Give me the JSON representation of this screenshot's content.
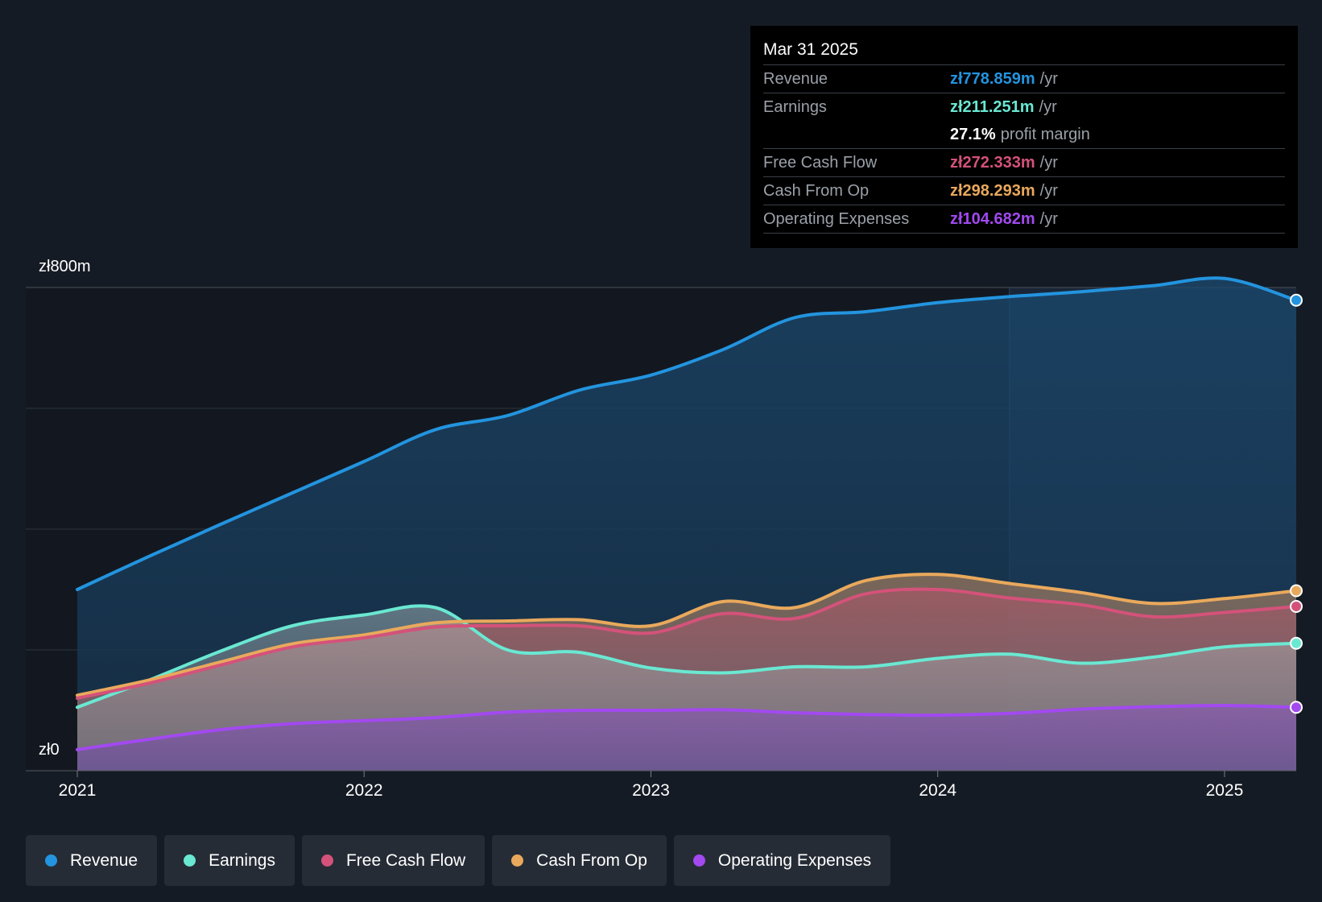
{
  "colors": {
    "revenue": "#2394df",
    "earnings": "#6ae8d2",
    "free_cash_flow": "#d4527a",
    "cash_from_op": "#e9a95c",
    "operating_expenses": "#a249f0",
    "background": "#151b24",
    "tooltip_bg": "#000000"
  },
  "tooltip": {
    "date": "Mar 31 2025",
    "rows": [
      {
        "label": "Revenue",
        "value": "zł778.859m",
        "unit": "/yr",
        "color": "#2394df"
      },
      {
        "label": "Earnings",
        "value": "zł211.251m",
        "unit": "/yr",
        "color": "#6ae8d2"
      },
      {
        "label": "",
        "value": "27.1%",
        "unit": "profit margin",
        "color": "#ffffff"
      },
      {
        "label": "Free Cash Flow",
        "value": "zł272.333m",
        "unit": "/yr",
        "color": "#d4527a"
      },
      {
        "label": "Cash From Op",
        "value": "zł298.293m",
        "unit": "/yr",
        "color": "#e9a95c"
      },
      {
        "label": "Operating Expenses",
        "value": "zł104.682m",
        "unit": "/yr",
        "color": "#a249f0"
      }
    ]
  },
  "legend": [
    {
      "label": "Revenue",
      "color": "#2394df"
    },
    {
      "label": "Earnings",
      "color": "#6ae8d2"
    },
    {
      "label": "Free Cash Flow",
      "color": "#d4527a"
    },
    {
      "label": "Cash From Op",
      "color": "#e9a95c"
    },
    {
      "label": "Operating Expenses",
      "color": "#a249f0"
    }
  ],
  "chart_data": {
    "type": "area",
    "title": "",
    "xlabel": "",
    "ylabel": "",
    "y_tick_labels": [
      "zł800m",
      "zł0"
    ],
    "ylim": [
      0,
      800
    ],
    "xlim": [
      2021.0,
      2025.25
    ],
    "x_ticks": [
      2021,
      2022,
      2023,
      2024,
      2025
    ],
    "x_tick_labels": [
      "2021",
      "2022",
      "2023",
      "2024",
      "2025"
    ],
    "forecast_start": 2024.25,
    "x": [
      2021.0,
      2021.25,
      2021.5,
      2021.75,
      2022.0,
      2022.25,
      2022.5,
      2022.75,
      2023.0,
      2023.25,
      2023.5,
      2023.75,
      2024.0,
      2024.25,
      2024.5,
      2024.75,
      2025.0,
      2025.25
    ],
    "series": [
      {
        "name": "Revenue",
        "key": "revenue",
        "values": [
          300,
          355,
          408,
          460,
          512,
          565,
          588,
          630,
          655,
          697,
          750,
          760,
          775,
          785,
          793,
          803,
          815,
          779
        ]
      },
      {
        "name": "Earnings",
        "key": "earnings",
        "values": [
          105,
          150,
          198,
          240,
          258,
          270,
          200,
          196,
          170,
          162,
          172,
          172,
          186,
          193,
          178,
          188,
          205,
          211
        ]
      },
      {
        "name": "Free Cash Flow",
        "key": "free_cash_flow",
        "values": [
          120,
          145,
          175,
          205,
          220,
          238,
          240,
          240,
          228,
          260,
          252,
          293,
          300,
          286,
          275,
          255,
          262,
          272
        ]
      },
      {
        "name": "Cash From Op",
        "key": "cash_from_op",
        "values": [
          125,
          150,
          180,
          210,
          225,
          245,
          248,
          250,
          240,
          280,
          270,
          315,
          325,
          310,
          295,
          277,
          285,
          298
        ]
      },
      {
        "name": "Operating Expenses",
        "key": "operating_expenses",
        "values": [
          35,
          52,
          68,
          78,
          83,
          88,
          97,
          100,
          100,
          101,
          96,
          93,
          92,
          95,
          102,
          106,
          108,
          105
        ]
      }
    ]
  }
}
